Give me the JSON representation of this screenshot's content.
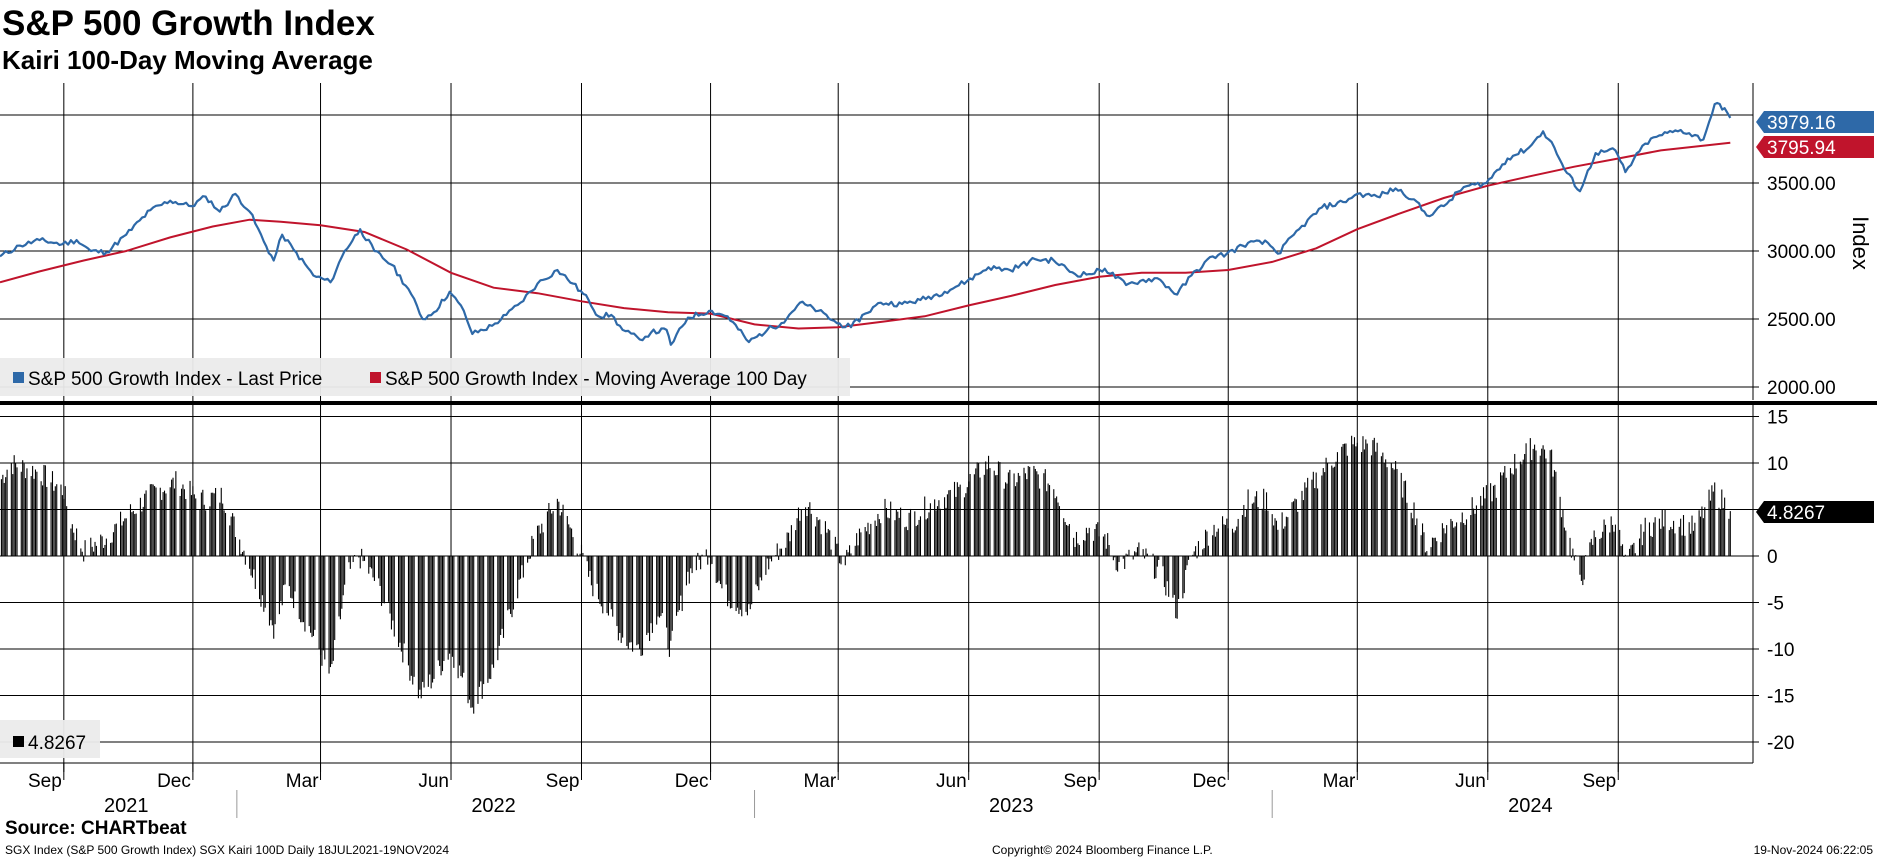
{
  "title": "S&P 500 Growth Index",
  "subtitle": "Kairi 100-Day Moving Average",
  "colors": {
    "price": "#2e69a8",
    "ma": "#c0142c",
    "bars": "#000000",
    "legend_bg": "#ebebeb"
  },
  "chart_data": [
    {
      "type": "line",
      "panel": "upper",
      "ylabel": "Index",
      "ylim": [
        1950,
        4200
      ],
      "yticks": [
        2000,
        2500,
        3000,
        3500
      ],
      "ytick_labels": [
        "2000.00",
        "2500.00",
        "3000.00",
        "3500.00"
      ],
      "date_range": [
        "2021-07-18",
        "2024-11-19"
      ],
      "series": [
        {
          "name": "S&P 500 Growth Index - Last Price",
          "last_value_label": "3979.16",
          "points": [
            [
              "2021-07-18",
              2960
            ],
            [
              "2021-08-01",
              3040
            ],
            [
              "2021-08-15",
              3080
            ],
            [
              "2021-08-31",
              3050
            ],
            [
              "2021-09-10",
              3080
            ],
            [
              "2021-09-20",
              3000
            ],
            [
              "2021-10-01",
              2990
            ],
            [
              "2021-10-15",
              3120
            ],
            [
              "2021-11-01",
              3300
            ],
            [
              "2021-11-15",
              3370
            ],
            [
              "2021-11-30",
              3330
            ],
            [
              "2021-12-10",
              3400
            ],
            [
              "2021-12-20",
              3290
            ],
            [
              "2021-12-31",
              3420
            ],
            [
              "2022-01-10",
              3290
            ],
            [
              "2022-01-20",
              3070
            ],
            [
              "2022-01-27",
              2930
            ],
            [
              "2022-02-02",
              3120
            ],
            [
              "2022-02-10",
              3010
            ],
            [
              "2022-02-24",
              2820
            ],
            [
              "2022-03-08",
              2770
            ],
            [
              "2022-03-18",
              3000
            ],
            [
              "2022-03-29",
              3160
            ],
            [
              "2022-04-08",
              3000
            ],
            [
              "2022-04-20",
              2900
            ],
            [
              "2022-05-02",
              2720
            ],
            [
              "2022-05-12",
              2500
            ],
            [
              "2022-05-20",
              2550
            ],
            [
              "2022-05-31",
              2700
            ],
            [
              "2022-06-10",
              2560
            ],
            [
              "2022-06-16",
              2390
            ],
            [
              "2022-06-30",
              2450
            ],
            [
              "2022-07-10",
              2530
            ],
            [
              "2022-07-20",
              2620
            ],
            [
              "2022-08-01",
              2760
            ],
            [
              "2022-08-15",
              2860
            ],
            [
              "2022-08-26",
              2760
            ],
            [
              "2022-09-06",
              2640
            ],
            [
              "2022-09-13",
              2520
            ],
            [
              "2022-09-22",
              2530
            ],
            [
              "2022-09-30",
              2420
            ],
            [
              "2022-10-12",
              2350
            ],
            [
              "2022-10-20",
              2400
            ],
            [
              "2022-10-31",
              2420
            ],
            [
              "2022-11-03",
              2310
            ],
            [
              "2022-11-15",
              2510
            ],
            [
              "2022-11-30",
              2560
            ],
            [
              "2022-12-13",
              2520
            ],
            [
              "2022-12-28",
              2330
            ],
            [
              "2023-01-10",
              2420
            ],
            [
              "2023-01-20",
              2470
            ],
            [
              "2023-02-02",
              2620
            ],
            [
              "2023-02-15",
              2560
            ],
            [
              "2023-02-28",
              2470
            ],
            [
              "2023-03-10",
              2440
            ],
            [
              "2023-03-20",
              2540
            ],
            [
              "2023-03-31",
              2620
            ],
            [
              "2023-04-15",
              2610
            ],
            [
              "2023-04-28",
              2640
            ],
            [
              "2023-05-15",
              2700
            ],
            [
              "2023-05-31",
              2780
            ],
            [
              "2023-06-15",
              2880
            ],
            [
              "2023-06-30",
              2860
            ],
            [
              "2023-07-18",
              2940
            ],
            [
              "2023-07-31",
              2930
            ],
            [
              "2023-08-15",
              2830
            ],
            [
              "2023-08-25",
              2830
            ],
            [
              "2023-09-05",
              2870
            ],
            [
              "2023-09-20",
              2750
            ],
            [
              "2023-09-30",
              2780
            ],
            [
              "2023-10-12",
              2800
            ],
            [
              "2023-10-26",
              2680
            ],
            [
              "2023-11-05",
              2820
            ],
            [
              "2023-11-20",
              2960
            ],
            [
              "2023-11-30",
              2980
            ],
            [
              "2023-12-15",
              3060
            ],
            [
              "2023-12-29",
              3060
            ],
            [
              "2024-01-05",
              2980
            ],
            [
              "2024-01-20",
              3160
            ],
            [
              "2024-02-05",
              3320
            ],
            [
              "2024-02-20",
              3360
            ],
            [
              "2024-03-01",
              3420
            ],
            [
              "2024-03-15",
              3400
            ],
            [
              "2024-03-28",
              3460
            ],
            [
              "2024-04-10",
              3380
            ],
            [
              "2024-04-19",
              3260
            ],
            [
              "2024-05-01",
              3330
            ],
            [
              "2024-05-15",
              3470
            ],
            [
              "2024-05-31",
              3500
            ],
            [
              "2024-06-15",
              3680
            ],
            [
              "2024-06-30",
              3760
            ],
            [
              "2024-07-10",
              3880
            ],
            [
              "2024-07-18",
              3760
            ],
            [
              "2024-07-25",
              3600
            ],
            [
              "2024-08-05",
              3440
            ],
            [
              "2024-08-16",
              3720
            ],
            [
              "2024-08-30",
              3740
            ],
            [
              "2024-09-06",
              3580
            ],
            [
              "2024-09-20",
              3790
            ],
            [
              "2024-09-30",
              3850
            ],
            [
              "2024-10-15",
              3890
            ],
            [
              "2024-10-31",
              3820
            ],
            [
              "2024-11-08",
              4080
            ],
            [
              "2024-11-15",
              4050
            ],
            [
              "2024-11-19",
              3979
            ]
          ]
        },
        {
          "name": "S&P 500 Growth Index - Moving Average 100 Day",
          "last_value_label": "3795.94",
          "points": [
            [
              "2021-07-18",
              2770
            ],
            [
              "2021-08-15",
              2850
            ],
            [
              "2021-09-15",
              2930
            ],
            [
              "2021-10-15",
              3000
            ],
            [
              "2021-11-15",
              3100
            ],
            [
              "2021-12-15",
              3180
            ],
            [
              "2022-01-10",
              3230
            ],
            [
              "2022-02-01",
              3215
            ],
            [
              "2022-03-01",
              3190
            ],
            [
              "2022-04-01",
              3140
            ],
            [
              "2022-05-01",
              3010
            ],
            [
              "2022-06-01",
              2840
            ],
            [
              "2022-07-01",
              2730
            ],
            [
              "2022-08-01",
              2690
            ],
            [
              "2022-09-01",
              2630
            ],
            [
              "2022-10-01",
              2580
            ],
            [
              "2022-11-01",
              2550
            ],
            [
              "2022-12-01",
              2540
            ],
            [
              "2023-01-01",
              2460
            ],
            [
              "2023-02-01",
              2430
            ],
            [
              "2023-03-01",
              2440
            ],
            [
              "2023-04-01",
              2480
            ],
            [
              "2023-05-01",
              2520
            ],
            [
              "2023-06-01",
              2600
            ],
            [
              "2023-07-01",
              2670
            ],
            [
              "2023-08-01",
              2750
            ],
            [
              "2023-09-01",
              2810
            ],
            [
              "2023-10-01",
              2840
            ],
            [
              "2023-11-01",
              2840
            ],
            [
              "2023-12-01",
              2860
            ],
            [
              "2024-01-01",
              2920
            ],
            [
              "2024-02-01",
              3020
            ],
            [
              "2024-03-01",
              3160
            ],
            [
              "2024-04-01",
              3280
            ],
            [
              "2024-05-01",
              3390
            ],
            [
              "2024-06-01",
              3480
            ],
            [
              "2024-07-01",
              3550
            ],
            [
              "2024-08-01",
              3620
            ],
            [
              "2024-09-01",
              3680
            ],
            [
              "2024-10-01",
              3740
            ],
            [
              "2024-11-19",
              3796
            ]
          ]
        }
      ]
    },
    {
      "type": "bar",
      "panel": "lower",
      "name": "SGX Kairi 100D",
      "last_value_label": "4.8267",
      "legend_value": "4.8267",
      "ylim": [
        -22,
        16
      ],
      "yticks": [
        15,
        10,
        5,
        0,
        -5,
        -10,
        -15,
        -20
      ],
      "ytick_labels": [
        "15",
        "10",
        "5",
        "0",
        "-5",
        "-10",
        "-15",
        "-20"
      ],
      "anchors": [
        [
          "2021-07-18",
          8
        ],
        [
          "2021-07-25",
          10
        ],
        [
          "2021-08-15",
          9
        ],
        [
          "2021-09-01",
          7
        ],
        [
          "2021-09-05",
          4
        ],
        [
          "2021-09-15",
          0.5
        ],
        [
          "2021-10-01",
          2
        ],
        [
          "2021-10-20",
          5
        ],
        [
          "2021-11-05",
          7
        ],
        [
          "2021-11-20",
          8
        ],
        [
          "2021-12-05",
          6
        ],
        [
          "2021-12-22",
          6.5
        ],
        [
          "2022-01-05",
          1
        ],
        [
          "2022-01-15",
          -3
        ],
        [
          "2022-01-28",
          -8
        ],
        [
          "2022-02-05",
          -3
        ],
        [
          "2022-02-15",
          -6
        ],
        [
          "2022-02-25",
          -9
        ],
        [
          "2022-03-08",
          -13
        ],
        [
          "2022-03-20",
          -2
        ],
        [
          "2022-03-28",
          0
        ],
        [
          "2022-04-10",
          -3
        ],
        [
          "2022-04-25",
          -9
        ],
        [
          "2022-05-10",
          -15
        ],
        [
          "2022-05-20",
          -13
        ],
        [
          "2022-06-01",
          -10
        ],
        [
          "2022-06-16",
          -16
        ],
        [
          "2022-07-01",
          -12
        ],
        [
          "2022-07-15",
          -5
        ],
        [
          "2022-07-30",
          2
        ],
        [
          "2022-08-15",
          6
        ],
        [
          "2022-08-30",
          1
        ],
        [
          "2022-09-08",
          -3
        ],
        [
          "2022-09-20",
          -6
        ],
        [
          "2022-10-01",
          -9
        ],
        [
          "2022-10-12",
          -10
        ],
        [
          "2022-10-25",
          -6
        ],
        [
          "2022-11-03",
          -10
        ],
        [
          "2022-11-15",
          -2
        ],
        [
          "2022-11-30",
          0.5
        ],
        [
          "2022-12-10",
          -4
        ],
        [
          "2022-12-28",
          -6
        ],
        [
          "2023-01-10",
          -1
        ],
        [
          "2023-01-25",
          2
        ],
        [
          "2023-02-05",
          6
        ],
        [
          "2023-02-20",
          3
        ],
        [
          "2023-03-05",
          -1
        ],
        [
          "2023-03-15",
          2
        ],
        [
          "2023-04-01",
          5
        ],
        [
          "2023-04-20",
          4
        ],
        [
          "2023-05-10",
          6
        ],
        [
          "2023-05-25",
          7
        ],
        [
          "2023-06-15",
          10
        ],
        [
          "2023-06-30",
          8
        ],
        [
          "2023-07-15",
          9
        ],
        [
          "2023-07-31",
          7.5
        ],
        [
          "2023-08-15",
          2
        ],
        [
          "2023-08-25",
          3
        ],
        [
          "2023-09-05",
          2
        ],
        [
          "2023-09-15",
          -1
        ],
        [
          "2023-09-30",
          0.5
        ],
        [
          "2023-10-15",
          -2
        ],
        [
          "2023-10-26",
          -6
        ],
        [
          "2023-11-05",
          0
        ],
        [
          "2023-11-20",
          3
        ],
        [
          "2023-12-05",
          3.5
        ],
        [
          "2023-12-15",
          6
        ],
        [
          "2023-12-29",
          6
        ],
        [
          "2024-01-05",
          3
        ],
        [
          "2024-01-25",
          7
        ],
        [
          "2024-02-10",
          10
        ],
        [
          "2024-02-25",
          12
        ],
        [
          "2024-03-10",
          12
        ],
        [
          "2024-03-25",
          10
        ],
        [
          "2024-04-10",
          5
        ],
        [
          "2024-04-19",
          1
        ],
        [
          "2024-05-01",
          3
        ],
        [
          "2024-05-20",
          5
        ],
        [
          "2024-06-05",
          7
        ],
        [
          "2024-06-20",
          10
        ],
        [
          "2024-07-05",
          12
        ],
        [
          "2024-07-15",
          11
        ],
        [
          "2024-07-25",
          4
        ],
        [
          "2024-08-05",
          -3
        ],
        [
          "2024-08-15",
          2
        ],
        [
          "2024-08-30",
          4
        ],
        [
          "2024-09-06",
          -1
        ],
        [
          "2024-09-20",
          3
        ],
        [
          "2024-10-05",
          4
        ],
        [
          "2024-10-25",
          3
        ],
        [
          "2024-11-08",
          7
        ],
        [
          "2024-11-19",
          4.83
        ]
      ]
    }
  ],
  "x_axis": {
    "month_ticks": [
      {
        "date": "2021-09-01",
        "label": "Sep"
      },
      {
        "date": "2021-12-01",
        "label": "Dec"
      },
      {
        "date": "2022-03-01",
        "label": "Mar"
      },
      {
        "date": "2022-06-01",
        "label": "Jun"
      },
      {
        "date": "2022-09-01",
        "label": "Sep"
      },
      {
        "date": "2022-12-01",
        "label": "Dec"
      },
      {
        "date": "2023-03-01",
        "label": "Mar"
      },
      {
        "date": "2023-06-01",
        "label": "Jun"
      },
      {
        "date": "2023-09-01",
        "label": "Sep"
      },
      {
        "date": "2023-12-01",
        "label": "Dec"
      },
      {
        "date": "2024-03-01",
        "label": "Mar"
      },
      {
        "date": "2024-06-01",
        "label": "Jun"
      },
      {
        "date": "2024-09-01",
        "label": "Sep"
      }
    ],
    "year_labels": [
      {
        "date": "2021-10-15",
        "label": "2021"
      },
      {
        "date": "2022-07-01",
        "label": "2022"
      },
      {
        "date": "2023-07-01",
        "label": "2023"
      },
      {
        "date": "2024-07-01",
        "label": "2024"
      }
    ],
    "year_separators": [
      "2022-01-01",
      "2023-01-01",
      "2024-01-01"
    ]
  },
  "footer": {
    "source": "Source: CHARTbeat",
    "ticker_info": "SGX Index (S&P 500 Growth Index) SGX Kairi 100D  Daily 18JUL2021-19NOV2024",
    "copyright": "Copyright© 2024 Bloomberg Finance L.P.",
    "timestamp": "19-Nov-2024 06:22:05"
  }
}
